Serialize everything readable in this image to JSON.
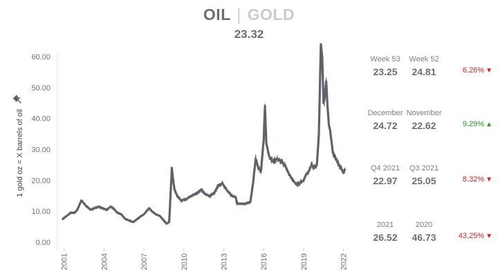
{
  "header": {
    "title_primary": "OIL",
    "title_separator": "|",
    "title_secondary": "GOLD",
    "current_value": "23.32"
  },
  "chart_data": {
    "type": "line",
    "title": "OIL | GOLD",
    "ylabel": "1 gold oz = X barrels of oil",
    "ylim": [
      0,
      60
    ],
    "y_ticks": [
      "0.00",
      "10.00",
      "20.00",
      "30.00",
      "40.00",
      "50.00",
      "60.00"
    ],
    "x_ticks": [
      "2001",
      "2004",
      "2007",
      "2010",
      "2013",
      "2016",
      "2019",
      "2022"
    ],
    "grid": false,
    "series": [
      {
        "color": "#5f6369",
        "points": [
          [
            2000.9,
            7.5
          ],
          [
            2001.2,
            8.5
          ],
          [
            2001.5,
            9.5
          ],
          [
            2001.8,
            9.5
          ],
          [
            2002.0,
            10.5
          ],
          [
            2002.3,
            13.5
          ],
          [
            2002.5,
            12.5
          ],
          [
            2002.7,
            11.5
          ],
          [
            2003.0,
            10.5
          ],
          [
            2003.3,
            11.0
          ],
          [
            2003.6,
            11.5
          ],
          [
            2003.9,
            11.0
          ],
          [
            2004.2,
            10.5
          ],
          [
            2004.5,
            11.5
          ],
          [
            2004.7,
            11.0
          ],
          [
            2005.0,
            9.5
          ],
          [
            2005.3,
            9.0
          ],
          [
            2005.6,
            7.5
          ],
          [
            2005.9,
            7.0
          ],
          [
            2006.2,
            6.5
          ],
          [
            2006.5,
            7.5
          ],
          [
            2006.8,
            8.5
          ],
          [
            2007.0,
            9.0
          ],
          [
            2007.2,
            10.0
          ],
          [
            2007.4,
            11.0
          ],
          [
            2007.6,
            10.0
          ],
          [
            2007.9,
            9.0
          ],
          [
            2008.2,
            8.5
          ],
          [
            2008.5,
            7.0
          ],
          [
            2008.7,
            6.0
          ],
          [
            2008.9,
            6.5
          ],
          [
            2009.0,
            15.0
          ],
          [
            2009.1,
            24.0
          ],
          [
            2009.2,
            20.0
          ],
          [
            2009.3,
            17.0
          ],
          [
            2009.5,
            15.0
          ],
          [
            2009.8,
            13.5
          ],
          [
            2010.2,
            14.0
          ],
          [
            2010.6,
            15.0
          ],
          [
            2011.0,
            16.0
          ],
          [
            2011.3,
            17.0
          ],
          [
            2011.6,
            15.5
          ],
          [
            2012.0,
            15.0
          ],
          [
            2012.3,
            16.0
          ],
          [
            2012.6,
            18.5
          ],
          [
            2012.9,
            19.0
          ],
          [
            2013.2,
            17.0
          ],
          [
            2013.6,
            15.0
          ],
          [
            2013.9,
            14.5
          ],
          [
            2014.0,
            12.5
          ],
          [
            2014.3,
            12.5
          ],
          [
            2014.7,
            12.5
          ],
          [
            2015.0,
            13.0
          ],
          [
            2015.2,
            19.0
          ],
          [
            2015.4,
            27.0
          ],
          [
            2015.6,
            24.0
          ],
          [
            2015.8,
            23.0
          ],
          [
            2016.0,
            33.0
          ],
          [
            2016.1,
            44.0
          ],
          [
            2016.2,
            32.0
          ],
          [
            2016.4,
            28.0
          ],
          [
            2016.7,
            26.0
          ],
          [
            2017.0,
            27.0
          ],
          [
            2017.3,
            26.0
          ],
          [
            2017.6,
            25.0
          ],
          [
            2017.9,
            22.0
          ],
          [
            2018.2,
            20.0
          ],
          [
            2018.5,
            18.5
          ],
          [
            2018.8,
            19.5
          ],
          [
            2019.0,
            20.0
          ],
          [
            2019.2,
            22.0
          ],
          [
            2019.4,
            23.0
          ],
          [
            2019.6,
            25.0
          ],
          [
            2019.8,
            24.0
          ],
          [
            2020.0,
            25.0
          ],
          [
            2020.15,
            35.0
          ],
          [
            2020.3,
            64.0
          ],
          [
            2020.4,
            60.0
          ],
          [
            2020.5,
            45.0
          ],
          [
            2020.6,
            47.0
          ],
          [
            2020.7,
            52.0
          ],
          [
            2020.8,
            44.0
          ],
          [
            2020.9,
            38.0
          ],
          [
            2021.0,
            36.0
          ],
          [
            2021.2,
            29.0
          ],
          [
            2021.4,
            27.0
          ],
          [
            2021.6,
            25.5
          ],
          [
            2021.8,
            24.0
          ],
          [
            2021.95,
            23.0
          ],
          [
            2022.1,
            23.3
          ]
        ]
      }
    ]
  },
  "comparisons": [
    {
      "label_a": "Week 53",
      "value_a": "23.25",
      "label_b": "Week 52",
      "value_b": "24.81",
      "change": "6.26%",
      "direction": "down",
      "arrow": "▼",
      "color": "#d62020"
    },
    {
      "label_a": "December",
      "value_a": "24.72",
      "label_b": "November",
      "value_b": "22.62",
      "change": "9.29%",
      "direction": "up",
      "arrow": "▲",
      "color": "#20a020"
    },
    {
      "label_a": "Q4 2021",
      "value_a": "22.97",
      "label_b": "Q3 2021",
      "value_b": "25.05",
      "change": "8.32%",
      "direction": "down",
      "arrow": "▼",
      "color": "#d62020"
    },
    {
      "label_a": "2021",
      "value_a": "26.52",
      "label_b": "2020",
      "value_b": "46.73",
      "change": "43.25%",
      "direction": "down",
      "arrow": "▼",
      "color": "#d62020"
    }
  ],
  "icons": {
    "pin": "pin-icon"
  }
}
